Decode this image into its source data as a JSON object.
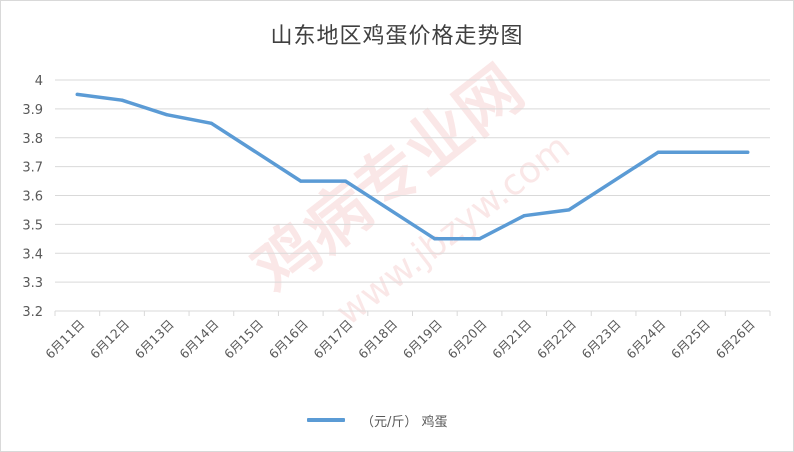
{
  "chart_data": {
    "type": "line",
    "title": "山东地区鸡蛋价格走势图",
    "categories": [
      "6月11日",
      "6月12日",
      "6月13日",
      "6月14日",
      "6月15日",
      "6月16日",
      "6月17日",
      "6月18日",
      "6月19日",
      "6月20日",
      "6月21日",
      "6月22日",
      "6月23日",
      "6月24日",
      "6月25日",
      "6月26日"
    ],
    "series": [
      {
        "name": "（元/斤） 鸡蛋",
        "values": [
          3.95,
          3.93,
          3.88,
          3.85,
          null,
          3.65,
          3.65,
          null,
          3.45,
          3.45,
          3.53,
          3.55,
          null,
          3.75,
          3.75,
          3.75
        ]
      }
    ],
    "ylim": [
      3.2,
      4.0
    ],
    "yticks": [
      "3.2",
      "3.3",
      "3.4",
      "3.5",
      "3.6",
      "3.7",
      "3.8",
      "3.9",
      "4"
    ],
    "grid": true,
    "legend_position": "bottom",
    "line_color": "#5b9bd5"
  },
  "watermark": {
    "text1": "鸡病专业网",
    "text2": "www.jbzyw.com"
  }
}
